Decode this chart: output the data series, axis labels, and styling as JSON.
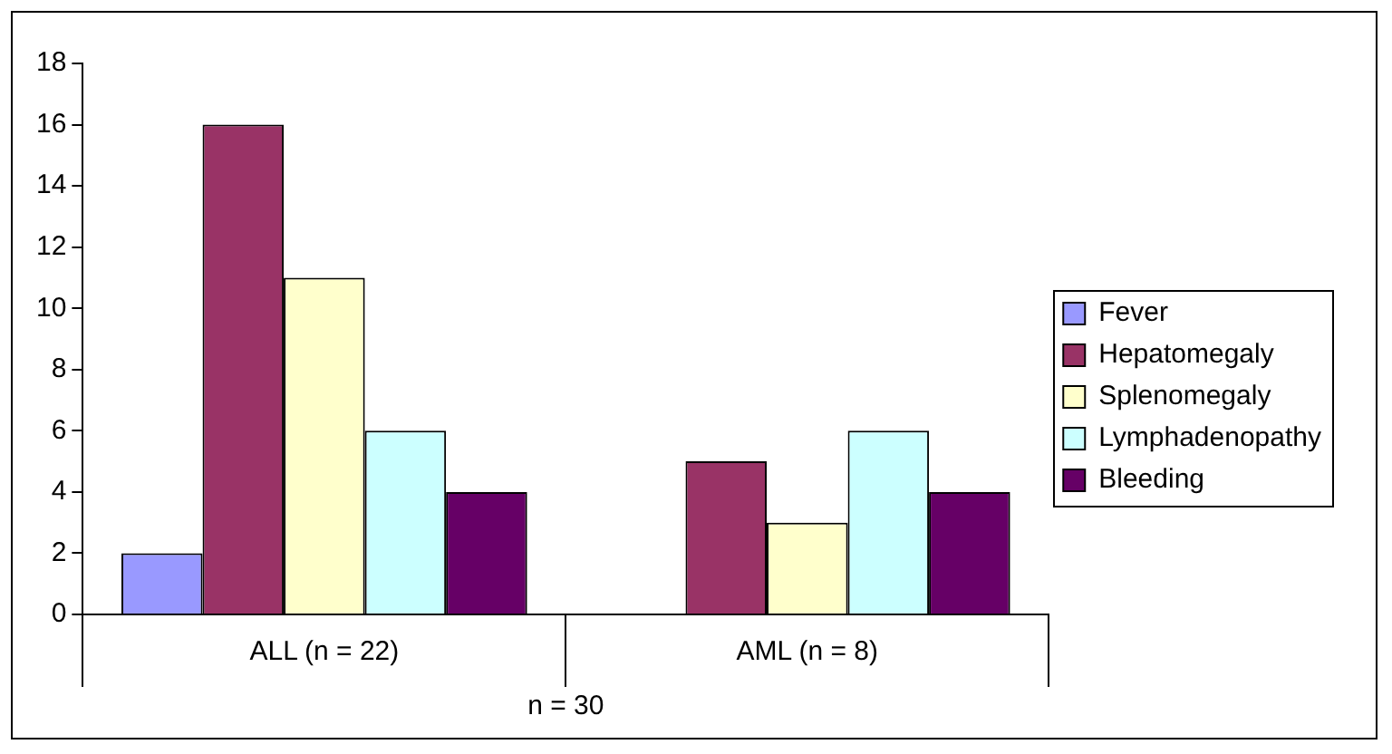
{
  "chart_data": {
    "type": "bar",
    "categories": [
      "ALL (n = 22)",
      "AML (n = 8)"
    ],
    "xlabel": "n = 30",
    "series": [
      {
        "name": "Fever",
        "color": "#9999ff",
        "values": [
          2,
          0
        ]
      },
      {
        "name": "Hepatomegaly",
        "color": "#993366",
        "values": [
          16,
          5
        ]
      },
      {
        "name": "Splenomegaly",
        "color": "#ffffcc",
        "values": [
          11,
          3
        ]
      },
      {
        "name": "Lymphadenopathy",
        "color": "#ccffff",
        "values": [
          6,
          6
        ]
      },
      {
        "name": "Bleeding",
        "color": "#660066",
        "values": [
          4,
          4
        ]
      }
    ],
    "ylim": [
      0,
      18
    ],
    "yticks": [
      0,
      2,
      4,
      6,
      8,
      10,
      12,
      14,
      16,
      18
    ],
    "grid": false,
    "legend": "right"
  }
}
